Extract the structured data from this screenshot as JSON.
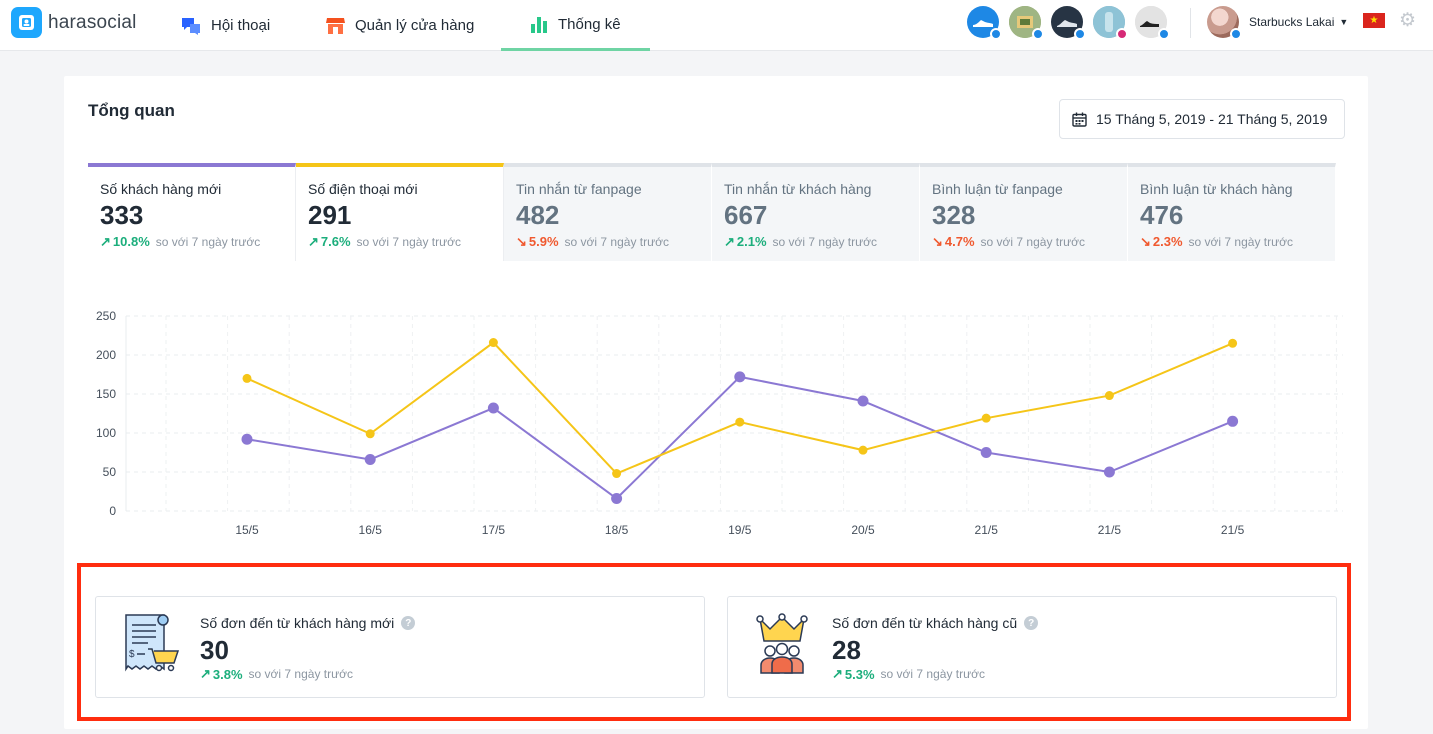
{
  "brand": {
    "name": "harasocial"
  },
  "nav": [
    {
      "label": "Hội thoại",
      "icon": "chat-bubbles-icon",
      "active": false
    },
    {
      "label": "Quản lý cửa hàng",
      "icon": "store-icon",
      "active": false
    },
    {
      "label": "Thống kê",
      "icon": "bar-chart-icon",
      "active": true
    }
  ],
  "user": {
    "name": "Starbucks Lakai"
  },
  "overview": {
    "title": "Tổng quan",
    "date_range": "15 Tháng 5, 2019 - 21 Tháng 5, 2019",
    "compare_text": "so với 7 ngày trước",
    "stats": [
      {
        "label": "Số khách hàng mới",
        "value": "333",
        "delta": "10.8%",
        "trend": "up",
        "active": true
      },
      {
        "label": "Số điện thoại mới",
        "value": "291",
        "delta": "7.6%",
        "trend": "up",
        "active": true
      },
      {
        "label": "Tin nhắn từ fanpage",
        "value": "482",
        "delta": "5.9%",
        "trend": "down",
        "active": false
      },
      {
        "label": "Tin nhắn từ khách hàng",
        "value": "667",
        "delta": "2.1%",
        "trend": "up",
        "active": false
      },
      {
        "label": "Bình luận từ fanpage",
        "value": "328",
        "delta": "4.7%",
        "trend": "down",
        "active": false
      },
      {
        "label": "Bình luận từ khách hàng",
        "value": "476",
        "delta": "2.3%",
        "trend": "down",
        "active": false
      }
    ]
  },
  "orders": {
    "compare_text": "so với 7 ngày trước",
    "new_customers": {
      "label": "Số đơn đến từ khách hàng mới",
      "value": "30",
      "delta": "3.8%",
      "trend": "up"
    },
    "old_customers": {
      "label": "Số đơn đến từ khách hàng cũ",
      "value": "28",
      "delta": "5.3%",
      "trend": "up"
    }
  },
  "colors": {
    "series_purple": "#8b78d3",
    "series_yellow": "#f5c518",
    "up": "#1cae7c",
    "down": "#f0592f",
    "highlight": "#ff2d0f"
  },
  "chart_data": {
    "type": "line",
    "categories": [
      "15/5",
      "16/5",
      "17/5",
      "18/5",
      "19/5",
      "20/5",
      "21/5",
      "21/5",
      "21/5"
    ],
    "series": [
      {
        "color": "#8b78d3",
        "values": [
          92,
          66,
          132,
          16,
          172,
          141,
          75,
          50,
          115
        ]
      },
      {
        "color": "#f5c518",
        "values": [
          170,
          99,
          216,
          48,
          114,
          78,
          119,
          148,
          215
        ]
      }
    ],
    "yticks": [
      0,
      50,
      100,
      150,
      200,
      250
    ],
    "ylim": [
      0,
      250
    ],
    "grid": true,
    "title": "",
    "xlabel": "",
    "ylabel": ""
  }
}
